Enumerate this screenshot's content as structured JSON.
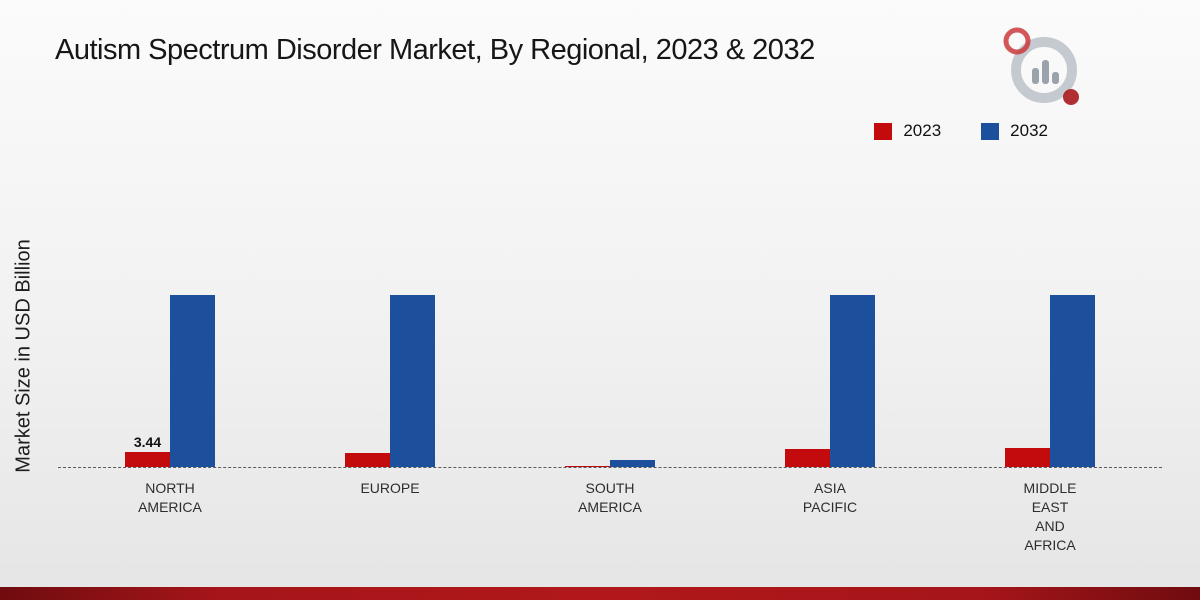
{
  "page": {
    "title": "Autism Spectrum Disorder Market, By Regional, 2023 & 2032",
    "y_axis_label": "Market Size in USD Billion"
  },
  "legend": {
    "items": [
      {
        "label": "2023",
        "color": "#c30b0e"
      },
      {
        "label": "2032",
        "color": "#1c4f9c"
      }
    ]
  },
  "chart_data": {
    "type": "bar",
    "title": "Autism Spectrum Disorder Market, By Regional, 2023 & 2032",
    "xlabel": "",
    "ylabel": "Market Size in USD Billion",
    "ylim": [
      0,
      45
    ],
    "grid": false,
    "legend_position": "top-right",
    "baseline_style": "dashed",
    "categories": [
      "North America",
      "Europe",
      "South America",
      "Asia Pacific",
      "Middle East and Africa"
    ],
    "category_label_lines": [
      [
        "NORTH",
        "AMERICA"
      ],
      [
        "EUROPE"
      ],
      [
        "SOUTH",
        "AMERICA"
      ],
      [
        "ASIA",
        "PACIFIC"
      ],
      [
        "MIDDLE",
        "EAST",
        "AND",
        "AFRICA"
      ]
    ],
    "series": [
      {
        "name": "2023",
        "color": "#c30b0e",
        "values": [
          3.44,
          3.3,
          0.3,
          4.2,
          4.4
        ],
        "data_labels": [
          "3.44",
          "",
          "",
          "",
          ""
        ]
      },
      {
        "name": "2032",
        "color": "#1c4f9c",
        "values": [
          39.5,
          39.5,
          1.6,
          39.4,
          39.5
        ],
        "data_labels": [
          "",
          "",
          "",
          "",
          ""
        ]
      }
    ]
  },
  "footer": {
    "bar_color": "#a51519"
  }
}
